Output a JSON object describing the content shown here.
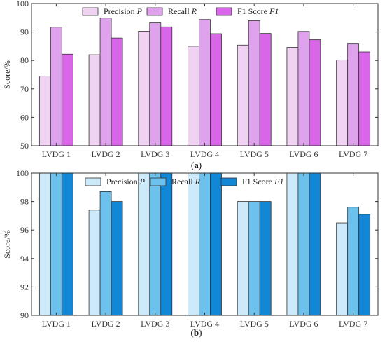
{
  "chart_data": [
    {
      "type": "bar",
      "panel_label": "(a)",
      "ylabel": "Score/%",
      "ylim": [
        50,
        100
      ],
      "yticks": [
        "50",
        "60",
        "70",
        "80",
        "90",
        "100"
      ],
      "categories": [
        "LVDG 1",
        "LVDG 2",
        "LVDG 3",
        "LVDG 4",
        "LVDG 5",
        "LVDG 6",
        "LVDG 7"
      ],
      "legend_position": "top",
      "series": [
        {
          "name": "Precision",
          "italic": "P",
          "color": "#f0d2f2",
          "values": [
            74.5,
            82.0,
            90.3,
            85.0,
            85.4,
            84.6,
            80.2
          ]
        },
        {
          "name": "Recall",
          "italic": "R",
          "color": "#dfa2ec",
          "values": [
            91.7,
            94.9,
            93.2,
            94.4,
            94.0,
            90.2,
            85.8
          ]
        },
        {
          "name": "F1 Score",
          "italic": "F1",
          "color": "#d966e8",
          "values": [
            82.2,
            87.9,
            91.8,
            89.4,
            89.5,
            87.3,
            83.0
          ]
        }
      ]
    },
    {
      "type": "bar",
      "panel_label": "(b)",
      "ylabel": "Score/%",
      "ylim": [
        90,
        100
      ],
      "yticks": [
        "90",
        "92",
        "94",
        "96",
        "98",
        "100"
      ],
      "categories": [
        "LVDG 1",
        "LVDG 2",
        "LVDG 3",
        "LVDG 4",
        "LVDG 5",
        "LVDG 6",
        "LVDG 7"
      ],
      "legend_position": "top",
      "series": [
        {
          "name": "Precision",
          "italic": "P",
          "color": "#cdeafa",
          "values": [
            100,
            97.4,
            100,
            100,
            98.0,
            100,
            96.5
          ]
        },
        {
          "name": "Recall",
          "italic": "R",
          "color": "#6cc2ec",
          "values": [
            100,
            98.7,
            100,
            100,
            98.0,
            100,
            97.6
          ]
        },
        {
          "name": "F1 Score",
          "italic": "F1",
          "color": "#1187d6",
          "values": [
            100,
            98.0,
            100,
            100,
            98.0,
            100,
            97.1
          ]
        }
      ]
    }
  ]
}
